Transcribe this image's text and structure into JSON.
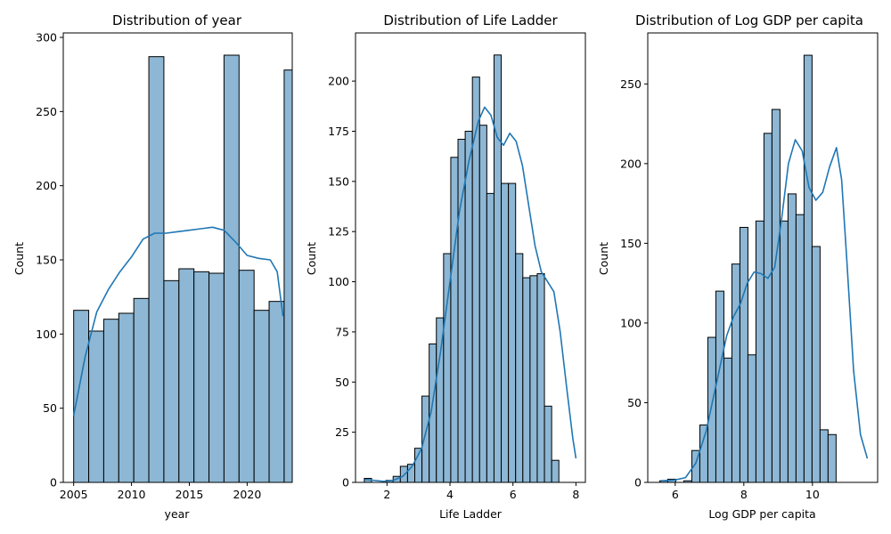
{
  "chart_data": [
    {
      "type": "bar",
      "title": "Distribution of year",
      "xlabel": "year",
      "ylabel": "Count",
      "xlim": [
        2004.1,
        2023.9
      ],
      "ylim": [
        0,
        303
      ],
      "xticks": [
        2005,
        2010,
        2015,
        2020
      ],
      "yticks": [
        0,
        50,
        100,
        150,
        200,
        250,
        300
      ],
      "bar_fill": "#8db7d4",
      "bar_edge": "#000000",
      "kde_color": "#1f77b4",
      "bins": [
        {
          "x0": 2005.0,
          "x1": 2006.3,
          "count": 116
        },
        {
          "x0": 2006.3,
          "x1": 2007.6,
          "count": 102
        },
        {
          "x0": 2007.6,
          "x1": 2008.9,
          "count": 110
        },
        {
          "x0": 2008.9,
          "x1": 2010.2,
          "count": 114
        },
        {
          "x0": 2010.2,
          "x1": 2011.5,
          "count": 124
        },
        {
          "x0": 2011.5,
          "x1": 2012.8,
          "count": 287
        },
        {
          "x0": 2012.8,
          "x1": 2014.1,
          "count": 136
        },
        {
          "x0": 2014.1,
          "x1": 2015.4,
          "count": 144
        },
        {
          "x0": 2015.4,
          "x1": 2016.7,
          "count": 142
        },
        {
          "x0": 2016.7,
          "x1": 2018.0,
          "count": 141
        },
        {
          "x0": 2018.0,
          "x1": 2019.3,
          "count": 288
        },
        {
          "x0": 2019.3,
          "x1": 2020.6,
          "count": 143
        },
        {
          "x0": 2020.6,
          "x1": 2021.9,
          "count": 116
        },
        {
          "x0": 2021.9,
          "x1": 2023.2,
          "count": 122
        },
        {
          "x0": 2023.2,
          "x1": 2024.5,
          "count": 278
        }
      ],
      "kde": [
        [
          2005,
          45
        ],
        [
          2006,
          85
        ],
        [
          2007,
          115
        ],
        [
          2008,
          130
        ],
        [
          2009,
          142
        ],
        [
          2010,
          152
        ],
        [
          2011,
          164
        ],
        [
          2012,
          168
        ],
        [
          2013,
          168
        ],
        [
          2014,
          169
        ],
        [
          2015,
          170
        ],
        [
          2016,
          171
        ],
        [
          2017,
          172
        ],
        [
          2018,
          170
        ],
        [
          2019,
          162
        ],
        [
          2020,
          153
        ],
        [
          2021,
          151
        ],
        [
          2022,
          150
        ],
        [
          2022.6,
          142
        ],
        [
          2023.1,
          112
        ]
      ]
    },
    {
      "type": "bar",
      "title": "Distribution of Life Ladder",
      "xlabel": "Life Ladder",
      "ylabel": "Count",
      "xlim": [
        1.0,
        8.3
      ],
      "ylim": [
        0,
        224
      ],
      "xticks": [
        2,
        4,
        6,
        8
      ],
      "yticks": [
        0,
        25,
        50,
        75,
        100,
        125,
        150,
        175,
        200
      ],
      "bar_fill": "#8db7d4",
      "bar_edge": "#000000",
      "kde_color": "#1f77b4",
      "bins_start": 1.28,
      "bin_width": 0.2288,
      "counts": [
        2,
        0,
        0,
        1,
        3,
        8,
        9,
        17,
        43,
        69,
        82,
        114,
        162,
        171,
        175,
        202,
        178,
        144,
        213,
        149,
        149,
        114,
        102,
        103,
        104,
        38,
        11
      ],
      "kde": [
        [
          1.3,
          1.5
        ],
        [
          1.6,
          1
        ],
        [
          1.9,
          0.5
        ],
        [
          2.2,
          1
        ],
        [
          2.5,
          3
        ],
        [
          2.8,
          8
        ],
        [
          3.1,
          17
        ],
        [
          3.4,
          35
        ],
        [
          3.7,
          65
        ],
        [
          4.0,
          100
        ],
        [
          4.3,
          135
        ],
        [
          4.6,
          160
        ],
        [
          4.9,
          180
        ],
        [
          5.1,
          187
        ],
        [
          5.3,
          183
        ],
        [
          5.5,
          172
        ],
        [
          5.7,
          168
        ],
        [
          5.9,
          174
        ],
        [
          6.1,
          170
        ],
        [
          6.3,
          158
        ],
        [
          6.5,
          138
        ],
        [
          6.7,
          118
        ],
        [
          6.9,
          105
        ],
        [
          7.1,
          100
        ],
        [
          7.3,
          95
        ],
        [
          7.5,
          75
        ],
        [
          7.7,
          48
        ],
        [
          7.9,
          22
        ],
        [
          8.0,
          12
        ]
      ]
    },
    {
      "type": "bar",
      "title": "Distribution of Log GDP per capita",
      "xlabel": "Log GDP per capita",
      "ylabel": "Count",
      "xlim": [
        5.2,
        11.9
      ],
      "ylim": [
        0,
        282
      ],
      "xticks": [
        6,
        8,
        10
      ],
      "yticks": [
        0,
        50,
        100,
        150,
        200,
        250
      ],
      "bar_fill": "#8db7d4",
      "bar_edge": "#000000",
      "kde_color": "#1f77b4",
      "bins_start": 5.55,
      "bin_width": 0.2336,
      "counts": [
        1,
        2,
        0,
        1,
        20,
        36,
        91,
        120,
        78,
        137,
        160,
        80,
        164,
        219,
        234,
        164,
        181,
        168,
        268,
        148,
        33,
        30
      ],
      "kde": [
        [
          5.6,
          1
        ],
        [
          6.0,
          1.5
        ],
        [
          6.3,
          3
        ],
        [
          6.6,
          12
        ],
        [
          6.9,
          32
        ],
        [
          7.2,
          62
        ],
        [
          7.5,
          92
        ],
        [
          7.7,
          104
        ],
        [
          7.9,
          112
        ],
        [
          8.1,
          125
        ],
        [
          8.3,
          132
        ],
        [
          8.5,
          131
        ],
        [
          8.7,
          128
        ],
        [
          8.9,
          135
        ],
        [
          9.1,
          165
        ],
        [
          9.3,
          200
        ],
        [
          9.5,
          215
        ],
        [
          9.7,
          208
        ],
        [
          9.9,
          185
        ],
        [
          10.1,
          177
        ],
        [
          10.3,
          182
        ],
        [
          10.5,
          198
        ],
        [
          10.7,
          210
        ],
        [
          10.85,
          190
        ],
        [
          11.0,
          140
        ],
        [
          11.2,
          70
        ],
        [
          11.4,
          30
        ],
        [
          11.6,
          15
        ]
      ]
    }
  ]
}
